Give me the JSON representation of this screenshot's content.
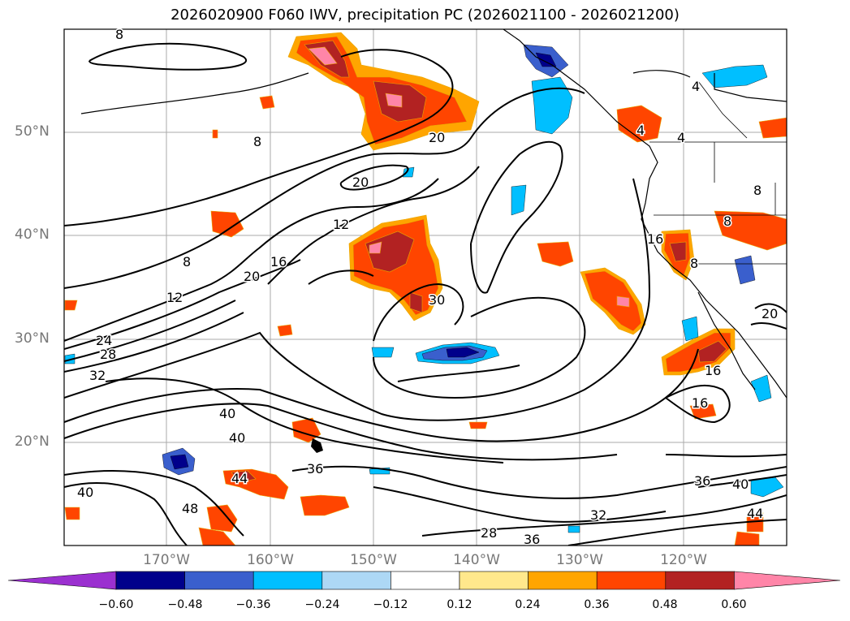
{
  "title": "2026020900 F060 IWV, precipitation PC (2026021100 - 2026021200)",
  "lat_labels": [
    "50°N",
    "40°N",
    "30°N",
    "20°N"
  ],
  "lon_labels": [
    "170°W",
    "160°W",
    "150°W",
    "140°W",
    "130°W",
    "120°W"
  ],
  "contour_labels": [
    "8",
    "8",
    "20",
    "20",
    "12",
    "16",
    "20",
    "8",
    "12",
    "24",
    "28",
    "32",
    "40",
    "40",
    "36",
    "44",
    "48",
    "40",
    "28",
    "36",
    "32",
    "36",
    "40",
    "44",
    "16",
    "16",
    "4",
    "4",
    "4",
    "8",
    "16",
    "8",
    "20",
    "30",
    "8"
  ],
  "colorbar": {
    "ticks": [
      "−0.60",
      "−0.48",
      "−0.36",
      "−0.24",
      "−0.12",
      "0.12",
      "0.24",
      "0.36",
      "0.48",
      "0.60"
    ],
    "colors": [
      "#9b30d0",
      "#00008b",
      "#3a5fcd",
      "#00bfff",
      "#add8f5",
      "#ffffff",
      "#ffe88c",
      "#ffa500",
      "#ff4500",
      "#b22222",
      "#ff85a8",
      "#ff85a8"
    ]
  },
  "colors": {
    "pos_low": "#ffe88c",
    "pos_mid": "#ffa500",
    "pos_hi": "#ff4500",
    "pos_vhi": "#b22222",
    "pos_max": "#ff85a8",
    "neg_low": "#add8f5",
    "neg_mid": "#00bfff",
    "neg_hi": "#3a5fcd",
    "neg_vhi": "#00008b"
  }
}
